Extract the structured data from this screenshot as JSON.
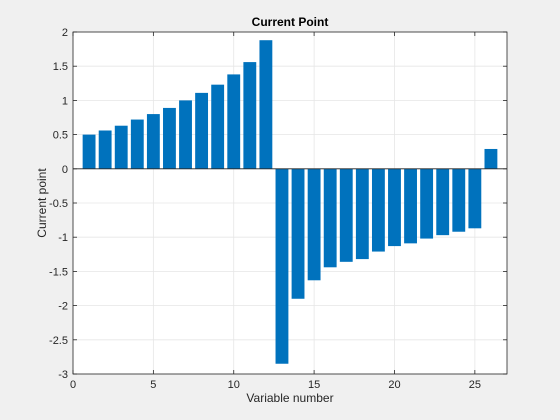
{
  "chart_data": {
    "type": "bar",
    "title": "Current Point",
    "xlabel": "Variable number",
    "ylabel": "Current point",
    "x": [
      1,
      2,
      3,
      4,
      5,
      6,
      7,
      8,
      9,
      10,
      11,
      12,
      13,
      14,
      15,
      16,
      17,
      18,
      19,
      20,
      21,
      22,
      23,
      24,
      25,
      26
    ],
    "values": [
      0.5,
      0.56,
      0.63,
      0.72,
      0.8,
      0.89,
      1.0,
      1.11,
      1.23,
      1.38,
      1.56,
      1.88,
      -2.85,
      -1.9,
      -1.63,
      -1.44,
      -1.36,
      -1.32,
      -1.21,
      -1.13,
      -1.09,
      -1.02,
      -0.97,
      -0.92,
      -0.87,
      0.29
    ],
    "xlim": [
      0,
      27
    ],
    "ylim": [
      -3,
      2
    ],
    "xticks": [
      0,
      5,
      10,
      15,
      20,
      25
    ],
    "yticks": [
      -3,
      -2.5,
      -2,
      -1.5,
      -1,
      -0.5,
      0,
      0.5,
      1,
      1.5,
      2
    ],
    "xtick_labels": [
      "0",
      "5",
      "10",
      "15",
      "20",
      "25"
    ],
    "ytick_labels": [
      "-3",
      "-2.5",
      "-2",
      "-1.5",
      "-1",
      "-0.5",
      "0",
      "0.5",
      "1",
      "1.5",
      "2"
    ],
    "grid": true,
    "legend": "none",
    "bar_color": "#0072BD",
    "background_color": "#f0f0f0",
    "axes_color": "#ffffff"
  }
}
